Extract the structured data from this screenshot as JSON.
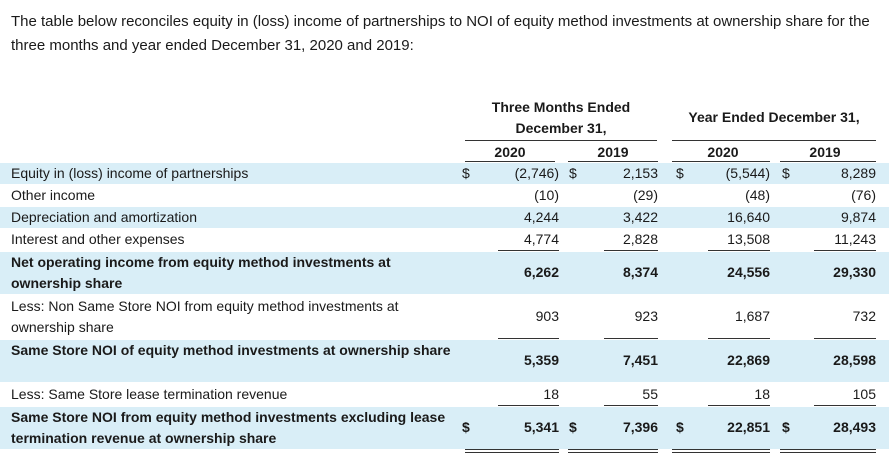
{
  "intro_text": "The table below reconciles equity in (loss) income of partnerships to NOI of equity method investments at ownership share for the three months and year ended December 31, 2020 and 2019:",
  "headers": {
    "three_months": "Three Months Ended December 31,",
    "year_ended": "Year Ended December 31,",
    "years": [
      "2020",
      "2019",
      "2020",
      "2019"
    ]
  },
  "dollar_sign": "$",
  "rows": [
    {
      "label": "Equity in (loss) income of partnerships",
      "values": [
        "(2,746)",
        "2,153",
        "(5,544)",
        "8,289"
      ]
    },
    {
      "label": "Other income",
      "values": [
        "(10)",
        "(29)",
        "(48)",
        "(76)"
      ]
    },
    {
      "label": "Depreciation and amortization",
      "values": [
        "4,244",
        "3,422",
        "16,640",
        "9,874"
      ]
    },
    {
      "label": "Interest and other expenses",
      "values": [
        "4,774",
        "2,828",
        "13,508",
        "11,243"
      ]
    },
    {
      "label": "Net operating income from equity method investments at ownership share",
      "values": [
        "6,262",
        "8,374",
        "24,556",
        "29,330"
      ]
    },
    {
      "label": "Less: Non Same Store NOI from equity method investments at ownership share",
      "values": [
        "903",
        "923",
        "1,687",
        "732"
      ]
    },
    {
      "label": "Same Store NOI of equity method investments at ownership share",
      "values": [
        "5,359",
        "7,451",
        "22,869",
        "28,598"
      ]
    },
    {
      "label": "Less: Same Store lease termination revenue",
      "values": [
        "18",
        "55",
        "18",
        "105"
      ]
    },
    {
      "label": "Same Store NOI from equity method investments excluding lease termination revenue at ownership share",
      "values": [
        "5,341",
        "7,396",
        "22,851",
        "28,493"
      ]
    }
  ]
}
